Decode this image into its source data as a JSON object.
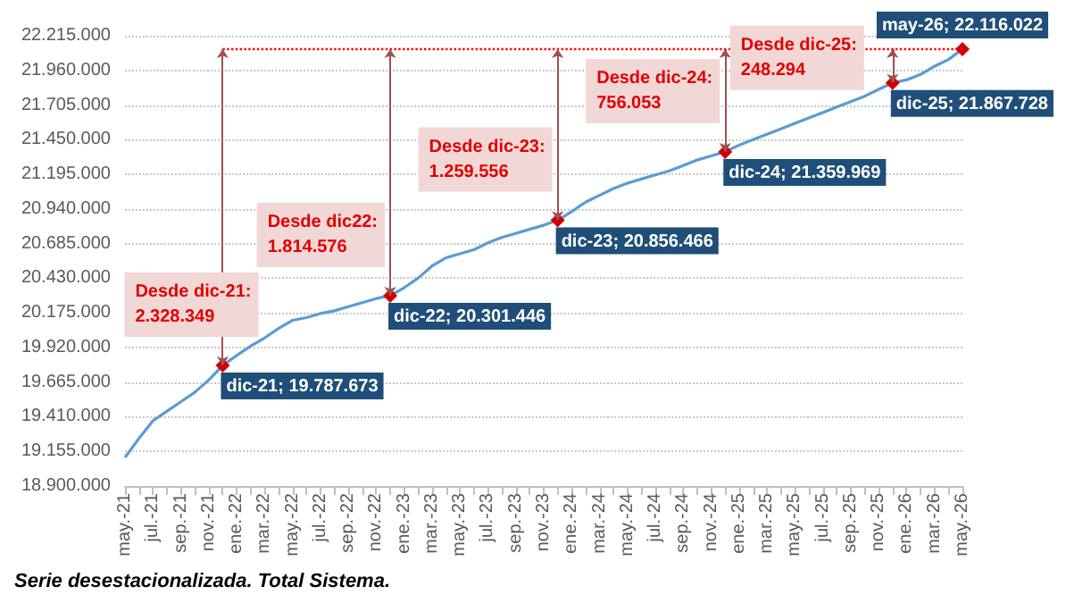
{
  "chart_data": {
    "type": "line",
    "categories": [
      "may.-21",
      null,
      "jul.-21",
      null,
      "sep.-21",
      null,
      "nov.-21",
      null,
      "ene.-22",
      null,
      "mar.-22",
      null,
      "may.-22",
      null,
      "jul.-22",
      null,
      "sep.-22",
      null,
      "nov.-22",
      null,
      "ene.-23",
      null,
      "mar.-23",
      null,
      "may.-23",
      null,
      "jul.-23",
      null,
      "sep.-23",
      null,
      "nov.-23",
      null,
      "ene.-24",
      null,
      "mar.-24",
      null,
      "may.-24",
      null,
      "jul.-24",
      null,
      "sep.-24",
      null,
      "nov.-24",
      null,
      "ene.-25",
      null,
      "mar.-25",
      null,
      "may.-25",
      null,
      "jul.-25",
      null,
      "sep.-25",
      null,
      "nov.-25",
      null,
      "ene.-26",
      null,
      "mar.-26",
      null,
      "may.-26"
    ],
    "series": [
      {
        "color": "#5b9bd5",
        "values": [
          19110000,
          19250000,
          19380000,
          19450000,
          19520000,
          19590000,
          19680000,
          19787673,
          19860000,
          19930000,
          19990000,
          20060000,
          20120000,
          20140000,
          20170000,
          20190000,
          20220000,
          20250000,
          20280000,
          20301446,
          20360000,
          20430000,
          20520000,
          20580000,
          20610000,
          20640000,
          20690000,
          20730000,
          20760000,
          20790000,
          20820000,
          20856466,
          20920000,
          20990000,
          21040000,
          21090000,
          21130000,
          21160000,
          21190000,
          21220000,
          21260000,
          21300000,
          21330000,
          21359969,
          21410000,
          21450000,
          21490000,
          21530000,
          21570000,
          21610000,
          21650000,
          21690000,
          21730000,
          21770000,
          21820000,
          21867728,
          21890000,
          21930000,
          21990000,
          22040000,
          22116022
        ],
        "value_labels": [
          null,
          null,
          null,
          null,
          null,
          null,
          null,
          "dic-21; 19.787.673",
          null,
          null,
          null,
          null,
          null,
          null,
          null,
          null,
          null,
          null,
          null,
          "dic-22; 20.301.446",
          null,
          null,
          null,
          null,
          null,
          null,
          null,
          null,
          null,
          null,
          null,
          "dic-23; 20.856.466",
          null,
          null,
          null,
          null,
          null,
          null,
          null,
          null,
          null,
          null,
          null,
          "dic-24; 21.359.969",
          null,
          null,
          null,
          null,
          null,
          null,
          null,
          null,
          null,
          null,
          null,
          "dic-25; 21.867.728",
          null,
          null,
          null,
          null,
          "may-26; 22.116.022"
        ]
      }
    ],
    "ylim": [
      18900000,
      22215000
    ],
    "yticks": [
      {
        "value": 18900000,
        "label": "18.900.000"
      },
      {
        "value": 19155000,
        "label": "19.155.000"
      },
      {
        "value": 19410000,
        "label": "19.410.000"
      },
      {
        "value": 19665000,
        "label": "19.665.000"
      },
      {
        "value": 19920000,
        "label": "19.920.000"
      },
      {
        "value": 20175000,
        "label": "20.175.000"
      },
      {
        "value": 20430000,
        "label": "20.430.000"
      },
      {
        "value": 20685000,
        "label": "20.685.000"
      },
      {
        "value": 20940000,
        "label": "20.940.000"
      },
      {
        "value": 21195000,
        "label": "21.195.000"
      },
      {
        "value": 21450000,
        "label": "21.450.000"
      },
      {
        "value": 21705000,
        "label": "21.705.000"
      },
      {
        "value": 21960000,
        "label": "21.960.000"
      },
      {
        "value": 22215000,
        "label": "22.215.000"
      }
    ],
    "annotations": [
      "Desde dic-21:\n2.328.349",
      "Desde dic22:\n1.814.576",
      "Desde dic-23:\n1.259.556",
      "Desde dic-24:\n756.053",
      "Desde dic-25:\n248.294",
      "Serie desestacionalizada. Total Sistema."
    ],
    "ref_lines": [
      {
        "axis": "y",
        "value": 22116022,
        "color": "#ff0000",
        "line_style": "dotted"
      }
    ],
    "grid": "y",
    "marker": "none",
    "line_style": "solid"
  }
}
